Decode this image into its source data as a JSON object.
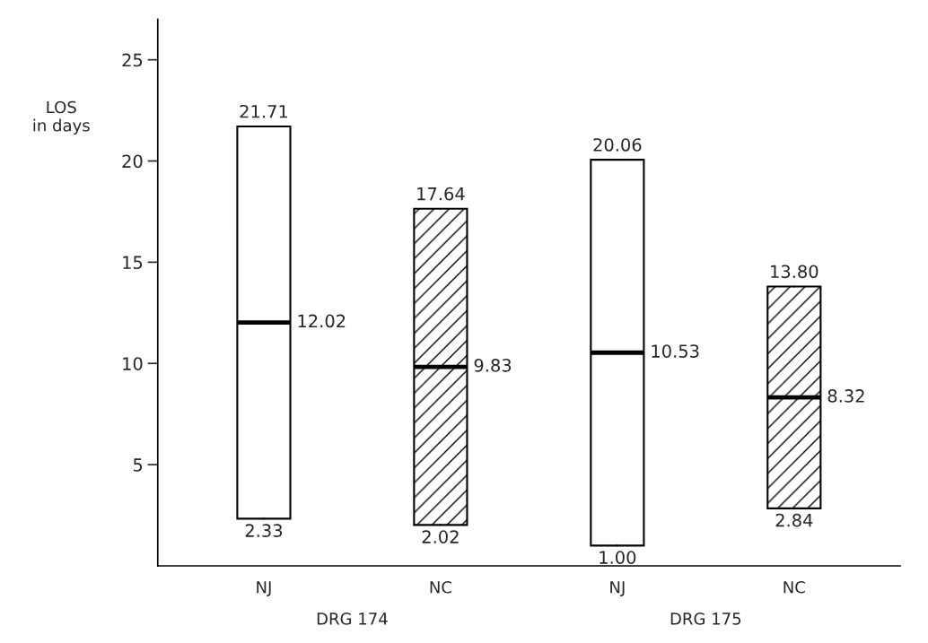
{
  "chart_data": {
    "type": "box",
    "ylabel": "LOS\nin days",
    "categories": [
      "NJ",
      "NC",
      "NJ",
      "NC"
    ],
    "boxes": [
      {
        "low": 2.33,
        "q1": 2.33,
        "median": 12.02,
        "q3": 21.71,
        "high": 21.71
      },
      {
        "low": 2.02,
        "q1": 2.02,
        "median": 9.83,
        "q3": 17.64,
        "high": 17.64
      },
      {
        "low": 1.0,
        "q1": 1.0,
        "median": 10.53,
        "q3": 20.06,
        "high": 20.06
      },
      {
        "low": 2.84,
        "q1": 2.84,
        "median": 8.32,
        "q3": 13.8,
        "high": 13.8
      }
    ],
    "ylim": [
      0,
      27
    ],
    "yticks": [
      5,
      10,
      15,
      20,
      25
    ],
    "grid": false,
    "annotations": [
      "DRG 174",
      "DRG 175",
      {
        "text": "21.71",
        "x": "NJ",
        "y": 21.71
      },
      {
        "text": "12.02",
        "x": "NJ",
        "y": 12.02
      },
      {
        "text": "2.33",
        "x": "NJ",
        "y": 2.33
      },
      {
        "text": "17.64",
        "x": "NC",
        "y": 17.64
      },
      {
        "text": "9.83",
        "x": "NC",
        "y": 9.83
      },
      {
        "text": "2.02",
        "x": "NC",
        "y": 2.02
      },
      {
        "text": "20.06",
        "y": 20.06
      },
      "10.53",
      {
        "text": "1.00",
        "y": 1.0
      },
      {
        "text": "13.80",
        "y": 13.8
      },
      "8.32",
      {
        "text": "2.84",
        "y": 2.84
      }
    ]
  }
}
